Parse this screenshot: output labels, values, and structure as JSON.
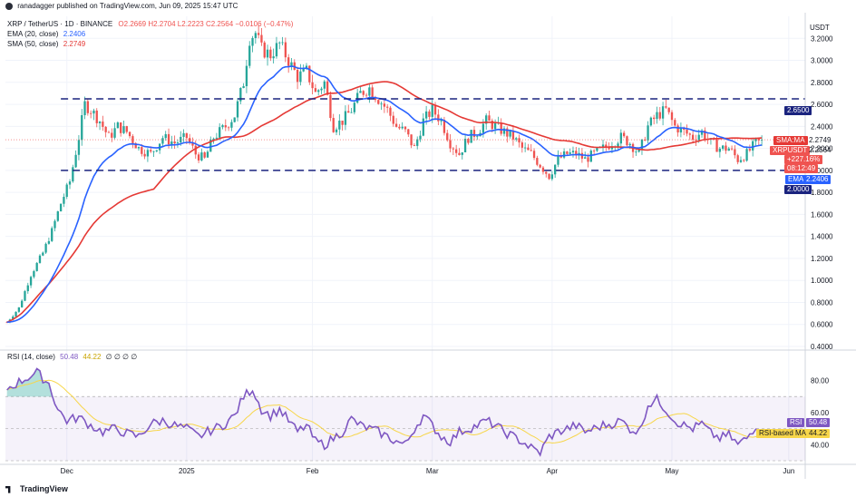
{
  "header": {
    "publisher_text": "ranadagger published on TradingView.com, Jun 09, 2025 15:47 UTC"
  },
  "legend": {
    "symbol": "XRP / TetherUS · 1D · BINANCE",
    "ohlc": "O2.2669 H2.2704 L2.2223 C2.2564 −0.0106 (−0.47%)",
    "ema_label": "EMA (20, close)",
    "ema_value": "2.2406",
    "sma_label": "SMA (50, close)",
    "sma_value": "2.2749",
    "rsi_label": "RSI (14, close)",
    "rsi_value": "50.48",
    "rsi_ma_value": "44.22",
    "rsi_extra": "∅ ∅ ∅ ∅"
  },
  "price_axis": {
    "currency": "USDT",
    "ticks": [
      "3.2000",
      "3.0000",
      "2.8000",
      "2.6000",
      "2.4000",
      "2.2000",
      "2.0000",
      "1.8000",
      "1.6000",
      "1.4000",
      "1.2000",
      "1.0000",
      "0.8000",
      "0.6000",
      "0.4000"
    ]
  },
  "rsi_axis": {
    "ticks": [
      "80.00",
      "60.00",
      "40.00"
    ]
  },
  "time_axis": {
    "labels": [
      "Dec",
      "2025",
      "Feb",
      "Mar",
      "Apr",
      "May",
      "Jun"
    ]
  },
  "price_tags": {
    "resistance": "2.6500",
    "sma_label": "SMA:MA",
    "sma_value": "2.2749",
    "symbol_label": "XRPUSDT",
    "last_price": "2.2564",
    "change": "+227.16%",
    "countdown": "08:12:49",
    "ema_label": "EMA",
    "ema_value": "2.2406",
    "support": "2.0000"
  },
  "rsi_tags": {
    "rsi_label": "RSI",
    "rsi_value": "50.48",
    "ma_label": "RSI-based MA",
    "ma_value": "44.22"
  },
  "footer": {
    "brand": "TradingView"
  },
  "colors": {
    "up": "#26a69a",
    "down": "#ef5350",
    "ema": "#2962ff",
    "sma": "#e53935",
    "rsi": "#7e57c2",
    "rsi_ma": "#f7d64a",
    "hline": "#1a237e"
  },
  "chart_data": {
    "type": "candlestick",
    "price_ylim": [
      0.4,
      3.4
    ],
    "support": 2.0,
    "resistance": 2.65,
    "price_anchors": [
      [
        0,
        0.62
      ],
      [
        4,
        0.75
      ],
      [
        8,
        1.05
      ],
      [
        12,
        1.25
      ],
      [
        15,
        1.45
      ],
      [
        18,
        1.7
      ],
      [
        21,
        1.9
      ],
      [
        24,
        2.3
      ],
      [
        26,
        2.6
      ],
      [
        28,
        2.55
      ],
      [
        31,
        2.45
      ],
      [
        34,
        2.3
      ],
      [
        37,
        2.4
      ],
      [
        40,
        2.35
      ],
      [
        44,
        2.2
      ],
      [
        48,
        2.15
      ],
      [
        52,
        2.3
      ],
      [
        56,
        2.25
      ],
      [
        60,
        2.3
      ],
      [
        63,
        2.15
      ],
      [
        66,
        2.1
      ],
      [
        69,
        2.3
      ],
      [
        73,
        2.4
      ],
      [
        76,
        2.5
      ],
      [
        79,
        2.8
      ],
      [
        81,
        3.2
      ],
      [
        83,
        3.25
      ],
      [
        85,
        3.1
      ],
      [
        88,
        3.05
      ],
      [
        91,
        3.15
      ],
      [
        94,
        3.0
      ],
      [
        97,
        2.85
      ],
      [
        100,
        2.9
      ],
      [
        103,
        2.7
      ],
      [
        106,
        2.8
      ],
      [
        109,
        2.4
      ],
      [
        112,
        2.45
      ],
      [
        115,
        2.55
      ],
      [
        118,
        2.7
      ],
      [
        121,
        2.75
      ],
      [
        124,
        2.65
      ],
      [
        127,
        2.55
      ],
      [
        130,
        2.4
      ],
      [
        133,
        2.35
      ],
      [
        136,
        2.2
      ],
      [
        139,
        2.45
      ],
      [
        142,
        2.55
      ],
      [
        145,
        2.45
      ],
      [
        148,
        2.25
      ],
      [
        151,
        2.15
      ],
      [
        154,
        2.3
      ],
      [
        157,
        2.35
      ],
      [
        160,
        2.45
      ],
      [
        163,
        2.4
      ],
      [
        166,
        2.35
      ],
      [
        169,
        2.3
      ],
      [
        172,
        2.2
      ],
      [
        175,
        2.15
      ],
      [
        178,
        2.05
      ],
      [
        181,
        1.95
      ],
      [
        184,
        2.1
      ],
      [
        187,
        2.15
      ],
      [
        190,
        2.15
      ],
      [
        193,
        2.1
      ],
      [
        196,
        2.15
      ],
      [
        199,
        2.2
      ],
      [
        202,
        2.25
      ],
      [
        205,
        2.3
      ],
      [
        208,
        2.25
      ],
      [
        211,
        2.15
      ],
      [
        214,
        2.4
      ],
      [
        217,
        2.5
      ],
      [
        220,
        2.55
      ],
      [
        223,
        2.4
      ],
      [
        226,
        2.35
      ],
      [
        229,
        2.3
      ],
      [
        232,
        2.35
      ],
      [
        235,
        2.25
      ],
      [
        238,
        2.2
      ],
      [
        241,
        2.2
      ],
      [
        244,
        2.1
      ],
      [
        247,
        2.15
      ],
      [
        250,
        2.25
      ],
      [
        252,
        2.26
      ]
    ],
    "rsi_anchors": [
      [
        0,
        75
      ],
      [
        5,
        80
      ],
      [
        10,
        85
      ],
      [
        14,
        78
      ],
      [
        17,
        62
      ],
      [
        20,
        55
      ],
      [
        24,
        57
      ],
      [
        28,
        52
      ],
      [
        32,
        48
      ],
      [
        36,
        50
      ],
      [
        40,
        47
      ],
      [
        44,
        45
      ],
      [
        48,
        53
      ],
      [
        52,
        55
      ],
      [
        56,
        52
      ],
      [
        60,
        50
      ],
      [
        64,
        45
      ],
      [
        68,
        49
      ],
      [
        72,
        52
      ],
      [
        76,
        58
      ],
      [
        79,
        70
      ],
      [
        82,
        75
      ],
      [
        85,
        62
      ],
      [
        88,
        58
      ],
      [
        91,
        62
      ],
      [
        94,
        55
      ],
      [
        97,
        48
      ],
      [
        100,
        52
      ],
      [
        103,
        42
      ],
      [
        106,
        40
      ],
      [
        109,
        44
      ],
      [
        112,
        48
      ],
      [
        115,
        56
      ],
      [
        118,
        52
      ],
      [
        121,
        50
      ],
      [
        124,
        48
      ],
      [
        127,
        45
      ],
      [
        130,
        42
      ],
      [
        133,
        40
      ],
      [
        136,
        50
      ],
      [
        139,
        58
      ],
      [
        142,
        52
      ],
      [
        145,
        45
      ],
      [
        148,
        42
      ],
      [
        151,
        48
      ],
      [
        154,
        50
      ],
      [
        157,
        52
      ],
      [
        160,
        55
      ],
      [
        163,
        52
      ],
      [
        166,
        48
      ],
      [
        169,
        45
      ],
      [
        172,
        42
      ],
      [
        175,
        38
      ],
      [
        178,
        35
      ],
      [
        181,
        45
      ],
      [
        184,
        48
      ],
      [
        187,
        50
      ],
      [
        190,
        52
      ],
      [
        193,
        48
      ],
      [
        196,
        50
      ],
      [
        199,
        52
      ],
      [
        202,
        53
      ],
      [
        205,
        55
      ],
      [
        208,
        50
      ],
      [
        211,
        48
      ],
      [
        214,
        65
      ],
      [
        217,
        68
      ],
      [
        220,
        62
      ],
      [
        223,
        55
      ],
      [
        226,
        52
      ],
      [
        229,
        50
      ],
      [
        232,
        53
      ],
      [
        235,
        47
      ],
      [
        238,
        44
      ],
      [
        241,
        46
      ],
      [
        244,
        40
      ],
      [
        247,
        44
      ],
      [
        250,
        52
      ],
      [
        252,
        50.48
      ]
    ],
    "n_bars": 253,
    "rsi_ylim": [
      30,
      95
    ],
    "rsi_band": [
      30,
      70
    ],
    "time_labels_at": [
      20,
      60,
      102,
      142,
      182,
      222,
      261
    ]
  }
}
